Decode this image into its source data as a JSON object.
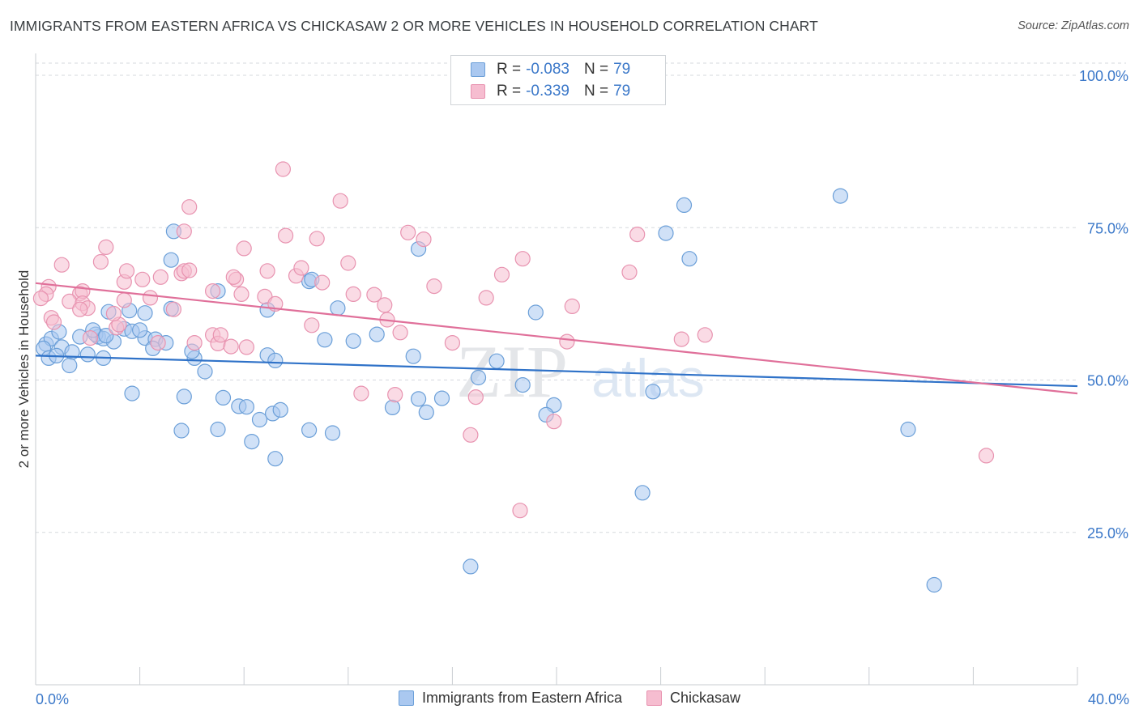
{
  "header": {
    "title": "IMMIGRANTS FROM EASTERN AFRICA VS CHICKASAW 2 OR MORE VEHICLES IN HOUSEHOLD CORRELATION CHART",
    "source": "Source: ZipAtlas.com"
  },
  "watermark": {
    "zip": "ZIP",
    "atlas": "atlas"
  },
  "colors": {
    "blue_fill": "#aac8f0",
    "blue_stroke": "#6b9fd8",
    "blue_line": "#2f72c8",
    "pink_fill": "#f6bdd0",
    "pink_stroke": "#e893b0",
    "pink_line": "#e0709a",
    "axis_label": "#3b78c9",
    "grid": "#d5d9de"
  },
  "legend": {
    "items": [
      {
        "r_label": "R =",
        "r_value": "-0.083",
        "n_label": "N =",
        "n_value": "79"
      },
      {
        "r_label": "R =",
        "r_value": "-0.339",
        "n_label": "N =",
        "n_value": "79"
      }
    ]
  },
  "bottom_legend": {
    "series_a": "Immigrants from Eastern Africa",
    "series_b": "Chickasaw"
  },
  "chart_data": {
    "type": "scatter",
    "title": "IMMIGRANTS FROM EASTERN AFRICA VS CHICKASAW 2 OR MORE VEHICLES IN HOUSEHOLD CORRELATION CHART",
    "xlabel": "",
    "ylabel": "2 or more Vehicles in Household",
    "xlim": [
      0,
      40
    ],
    "ylim": [
      0,
      102
    ],
    "x_tick_labels": [
      "0.0%",
      "40.0%"
    ],
    "y_ticks": [
      25,
      50,
      75,
      100
    ],
    "y_tick_labels": [
      "25.0%",
      "50.0%",
      "75.0%",
      "100.0%"
    ],
    "grid": "horizontal dashed",
    "legend_position": "top-center",
    "series": [
      {
        "name": "Immigrants from Eastern Africa",
        "r": -0.083,
        "n": 79,
        "trend": [
          [
            0,
            54.0
          ],
          [
            40,
            49.0
          ]
        ],
        "points": [
          [
            0.4,
            55.9
          ],
          [
            0.6,
            56.8
          ],
          [
            0.3,
            55.2
          ],
          [
            0.9,
            57.9
          ],
          [
            0.5,
            53.6
          ],
          [
            1.0,
            55.4
          ],
          [
            1.4,
            54.6
          ],
          [
            1.7,
            57.1
          ],
          [
            1.3,
            52.4
          ],
          [
            0.8,
            54.0
          ],
          [
            2.4,
            57.1
          ],
          [
            2.3,
            57.5
          ],
          [
            2.6,
            56.8
          ],
          [
            3.0,
            56.3
          ],
          [
            2.0,
            54.2
          ],
          [
            2.6,
            53.6
          ],
          [
            3.4,
            58.4
          ],
          [
            3.7,
            58.0
          ],
          [
            4.2,
            56.9
          ],
          [
            4.6,
            56.7
          ],
          [
            4.0,
            58.2
          ],
          [
            4.5,
            55.2
          ],
          [
            2.8,
            61.2
          ],
          [
            3.6,
            61.4
          ],
          [
            4.2,
            61.0
          ],
          [
            5.2,
            69.7
          ],
          [
            5.3,
            74.4
          ],
          [
            5.0,
            56.1
          ],
          [
            6.1,
            53.6
          ],
          [
            6.0,
            54.7
          ],
          [
            6.5,
            51.4
          ],
          [
            5.7,
            47.3
          ],
          [
            3.7,
            47.8
          ],
          [
            5.6,
            41.7
          ],
          [
            7.2,
            47.1
          ],
          [
            7.8,
            45.7
          ],
          [
            7.0,
            41.9
          ],
          [
            8.1,
            45.6
          ],
          [
            8.6,
            43.5
          ],
          [
            9.1,
            44.5
          ],
          [
            8.3,
            39.9
          ],
          [
            9.2,
            37.1
          ],
          [
            7.0,
            64.6
          ],
          [
            8.9,
            61.5
          ],
          [
            8.9,
            54.1
          ],
          [
            9.2,
            53.2
          ],
          [
            9.4,
            45.1
          ],
          [
            10.5,
            41.8
          ],
          [
            11.4,
            41.3
          ],
          [
            11.1,
            56.6
          ],
          [
            12.2,
            56.4
          ],
          [
            11.6,
            61.8
          ],
          [
            10.5,
            66.2
          ],
          [
            10.6,
            66.5
          ],
          [
            13.1,
            57.5
          ],
          [
            13.7,
            45.5
          ],
          [
            14.5,
            53.9
          ],
          [
            14.7,
            71.5
          ],
          [
            14.7,
            46.9
          ],
          [
            15.0,
            44.7
          ],
          [
            15.6,
            47.0
          ],
          [
            17.0,
            50.4
          ],
          [
            18.7,
            49.2
          ],
          [
            19.2,
            61.1
          ],
          [
            17.7,
            53.1
          ],
          [
            16.7,
            19.4
          ],
          [
            19.9,
            45.9
          ],
          [
            19.6,
            44.3
          ],
          [
            23.3,
            31.5
          ],
          [
            23.7,
            48.1
          ],
          [
            24.2,
            74.1
          ],
          [
            24.9,
            78.7
          ],
          [
            25.1,
            69.9
          ],
          [
            30.9,
            80.2
          ],
          [
            33.5,
            41.9
          ],
          [
            34.5,
            16.4
          ],
          [
            2.2,
            58.2
          ],
          [
            2.7,
            57.3
          ],
          [
            5.2,
            61.7
          ]
        ]
      },
      {
        "name": "Chickasaw",
        "r": -0.339,
        "n": 79,
        "trend": [
          [
            0,
            65.9
          ],
          [
            40,
            47.8
          ]
        ],
        "points": [
          [
            0.5,
            65.3
          ],
          [
            0.4,
            64.1
          ],
          [
            0.2,
            63.4
          ],
          [
            1.0,
            68.9
          ],
          [
            0.6,
            60.2
          ],
          [
            0.7,
            59.5
          ],
          [
            1.7,
            64.2
          ],
          [
            1.8,
            64.6
          ],
          [
            1.3,
            62.9
          ],
          [
            1.8,
            62.6
          ],
          [
            2.0,
            61.8
          ],
          [
            1.7,
            61.6
          ],
          [
            2.1,
            56.9
          ],
          [
            2.7,
            71.8
          ],
          [
            3.1,
            58.6
          ],
          [
            3.2,
            59.1
          ],
          [
            3.4,
            63.1
          ],
          [
            3.4,
            66.1
          ],
          [
            3.5,
            67.9
          ],
          [
            4.1,
            66.5
          ],
          [
            4.4,
            63.5
          ],
          [
            4.8,
            66.9
          ],
          [
            4.7,
            56.1
          ],
          [
            5.6,
            67.5
          ],
          [
            5.7,
            67.9
          ],
          [
            5.7,
            74.4
          ],
          [
            5.9,
            78.4
          ],
          [
            5.9,
            68.0
          ],
          [
            5.3,
            61.6
          ],
          [
            6.1,
            56.1
          ],
          [
            6.8,
            64.6
          ],
          [
            6.8,
            57.4
          ],
          [
            7.0,
            56.0
          ],
          [
            7.1,
            57.4
          ],
          [
            7.7,
            66.5
          ],
          [
            7.6,
            66.9
          ],
          [
            7.9,
            64.1
          ],
          [
            8.0,
            71.6
          ],
          [
            7.5,
            55.5
          ],
          [
            8.9,
            67.9
          ],
          [
            8.8,
            63.7
          ],
          [
            8.1,
            55.4
          ],
          [
            9.2,
            62.5
          ],
          [
            9.5,
            84.6
          ],
          [
            9.6,
            73.7
          ],
          [
            10.0,
            67.1
          ],
          [
            10.2,
            68.4
          ],
          [
            10.6,
            59.0
          ],
          [
            10.8,
            73.2
          ],
          [
            11.0,
            66.0
          ],
          [
            11.7,
            79.4
          ],
          [
            12.0,
            69.2
          ],
          [
            12.2,
            64.1
          ],
          [
            13.0,
            64.0
          ],
          [
            13.5,
            59.9
          ],
          [
            14.0,
            57.8
          ],
          [
            13.8,
            47.6
          ],
          [
            14.3,
            74.2
          ],
          [
            14.9,
            73.1
          ],
          [
            15.3,
            65.4
          ],
          [
            16.0,
            56.1
          ],
          [
            16.7,
            41.0
          ],
          [
            16.9,
            47.2
          ],
          [
            17.3,
            63.5
          ],
          [
            17.9,
            67.3
          ],
          [
            18.6,
            28.6
          ],
          [
            18.7,
            69.9
          ],
          [
            20.4,
            56.3
          ],
          [
            20.6,
            62.1
          ],
          [
            19.9,
            43.2
          ],
          [
            22.8,
            67.7
          ],
          [
            23.1,
            73.9
          ],
          [
            24.8,
            56.7
          ],
          [
            25.7,
            57.4
          ],
          [
            36.5,
            37.6
          ],
          [
            2.5,
            69.4
          ],
          [
            3.0,
            60.9
          ],
          [
            12.5,
            47.8
          ],
          [
            13.4,
            62.3
          ]
        ]
      }
    ]
  }
}
